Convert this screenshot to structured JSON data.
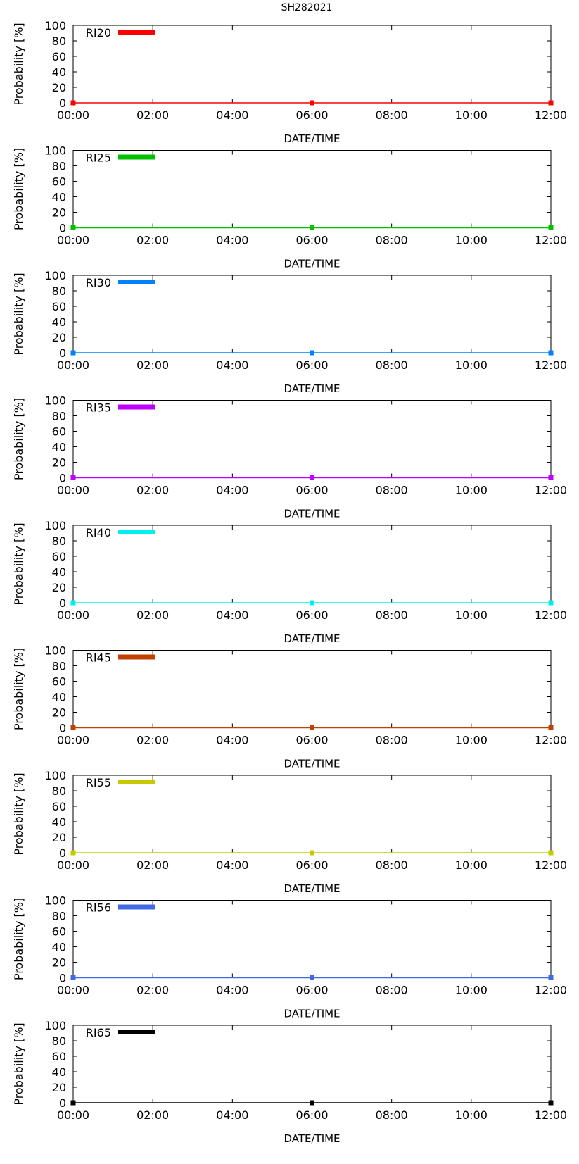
{
  "figure": {
    "title": "SH282021"
  },
  "chart_data": [
    {
      "type": "line",
      "legend": "RI20",
      "color": "#ff0000",
      "x": [
        "00:00",
        "06:00",
        "12:00"
      ],
      "values": [
        0,
        0,
        0
      ],
      "xlabel": "DATE/TIME",
      "ylabel": "Probability [%]",
      "ylim": [
        0,
        100
      ],
      "xlim_hours": [
        0,
        12
      ],
      "yticks": [
        "0",
        "20",
        "40",
        "60",
        "80",
        "100"
      ],
      "xticks": [
        "00:00",
        "02:00",
        "04:00",
        "06:00",
        "08:00",
        "10:00",
        "12:00"
      ],
      "legend_position": "top-left",
      "grid": false
    },
    {
      "type": "line",
      "legend": "RI25",
      "color": "#00c000",
      "x": [
        "00:00",
        "06:00",
        "12:00"
      ],
      "values": [
        0,
        0,
        0
      ],
      "xlabel": "DATE/TIME",
      "ylabel": "Probability [%]",
      "ylim": [
        0,
        100
      ],
      "xlim_hours": [
        0,
        12
      ],
      "yticks": [
        "0",
        "20",
        "40",
        "60",
        "80",
        "100"
      ],
      "xticks": [
        "00:00",
        "02:00",
        "04:00",
        "06:00",
        "08:00",
        "10:00",
        "12:00"
      ],
      "legend_position": "top-left",
      "grid": false
    },
    {
      "type": "line",
      "legend": "RI30",
      "color": "#0080ff",
      "x": [
        "00:00",
        "06:00",
        "12:00"
      ],
      "values": [
        0,
        0,
        0
      ],
      "xlabel": "DATE/TIME",
      "ylabel": "Probability [%]",
      "ylim": [
        0,
        100
      ],
      "xlim_hours": [
        0,
        12
      ],
      "yticks": [
        "0",
        "20",
        "40",
        "60",
        "80",
        "100"
      ],
      "xticks": [
        "00:00",
        "02:00",
        "04:00",
        "06:00",
        "08:00",
        "10:00",
        "12:00"
      ],
      "legend_position": "top-left",
      "grid": false
    },
    {
      "type": "line",
      "legend": "RI35",
      "color": "#c000ff",
      "x": [
        "00:00",
        "06:00",
        "12:00"
      ],
      "values": [
        0,
        0,
        0
      ],
      "xlabel": "DATE/TIME",
      "ylabel": "Probability [%]",
      "ylim": [
        0,
        100
      ],
      "xlim_hours": [
        0,
        12
      ],
      "yticks": [
        "0",
        "20",
        "40",
        "60",
        "80",
        "100"
      ],
      "xticks": [
        "00:00",
        "02:00",
        "04:00",
        "06:00",
        "08:00",
        "10:00",
        "12:00"
      ],
      "legend_position": "top-left",
      "grid": false
    },
    {
      "type": "line",
      "legend": "RI40",
      "color": "#00eeee",
      "x": [
        "00:00",
        "06:00",
        "12:00"
      ],
      "values": [
        0,
        0,
        0
      ],
      "xlabel": "DATE/TIME",
      "ylabel": "Probability [%]",
      "ylim": [
        0,
        100
      ],
      "xlim_hours": [
        0,
        12
      ],
      "yticks": [
        "0",
        "20",
        "40",
        "60",
        "80",
        "100"
      ],
      "xticks": [
        "00:00",
        "02:00",
        "04:00",
        "06:00",
        "08:00",
        "10:00",
        "12:00"
      ],
      "legend_position": "top-left",
      "grid": false
    },
    {
      "type": "line",
      "legend": "RI45",
      "color": "#c04000",
      "x": [
        "00:00",
        "06:00",
        "12:00"
      ],
      "values": [
        0,
        0,
        0
      ],
      "xlabel": "DATE/TIME",
      "ylabel": "Probability [%]",
      "ylim": [
        0,
        100
      ],
      "xlim_hours": [
        0,
        12
      ],
      "yticks": [
        "0",
        "20",
        "40",
        "60",
        "80",
        "100"
      ],
      "xticks": [
        "00:00",
        "02:00",
        "04:00",
        "06:00",
        "08:00",
        "10:00",
        "12:00"
      ],
      "legend_position": "top-left",
      "grid": false
    },
    {
      "type": "line",
      "legend": "RI55",
      "color": "#c8c800",
      "x": [
        "00:00",
        "06:00",
        "12:00"
      ],
      "values": [
        0,
        0,
        0
      ],
      "xlabel": "DATE/TIME",
      "ylabel": "Probability [%]",
      "ylim": [
        0,
        100
      ],
      "xlim_hours": [
        0,
        12
      ],
      "yticks": [
        "0",
        "20",
        "40",
        "60",
        "80",
        "100"
      ],
      "xticks": [
        "00:00",
        "02:00",
        "04:00",
        "06:00",
        "08:00",
        "10:00",
        "12:00"
      ],
      "legend_position": "top-left",
      "grid": false
    },
    {
      "type": "line",
      "legend": "RI56",
      "color": "#4169e1",
      "x": [
        "00:00",
        "06:00",
        "12:00"
      ],
      "values": [
        0,
        0,
        0
      ],
      "xlabel": "DATE/TIME",
      "ylabel": "Probability [%]",
      "ylim": [
        0,
        100
      ],
      "xlim_hours": [
        0,
        12
      ],
      "yticks": [
        "0",
        "20",
        "40",
        "60",
        "80",
        "100"
      ],
      "xticks": [
        "00:00",
        "02:00",
        "04:00",
        "06:00",
        "08:00",
        "10:00",
        "12:00"
      ],
      "legend_position": "top-left",
      "grid": false
    },
    {
      "type": "line",
      "legend": "RI65",
      "color": "#000000",
      "x": [
        "00:00",
        "06:00",
        "12:00"
      ],
      "values": [
        0,
        0,
        0
      ],
      "xlabel": "DATE/TIME",
      "ylabel": "Probability [%]",
      "ylim": [
        0,
        100
      ],
      "xlim_hours": [
        0,
        12
      ],
      "yticks": [
        "0",
        "20",
        "40",
        "60",
        "80",
        "100"
      ],
      "xticks": [
        "00:00",
        "02:00",
        "04:00",
        "06:00",
        "08:00",
        "10:00",
        "12:00"
      ],
      "legend_position": "top-left",
      "grid": false
    }
  ]
}
